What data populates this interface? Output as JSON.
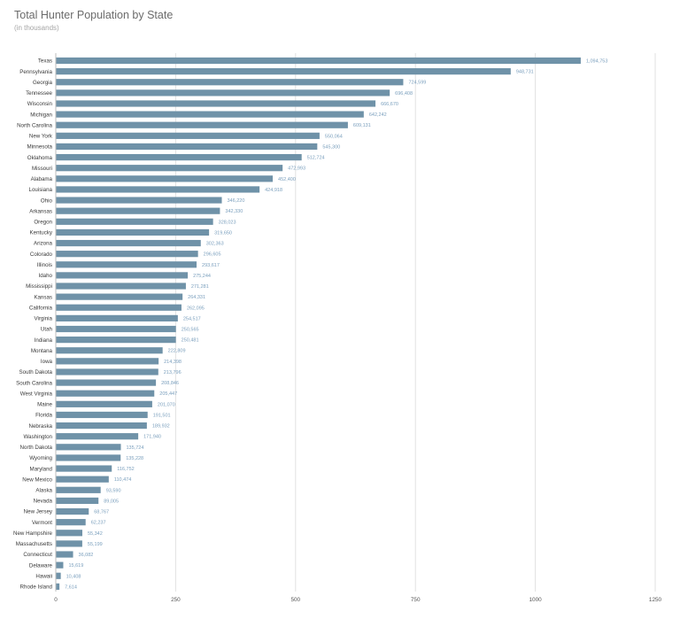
{
  "chart_data": {
    "type": "bar",
    "orientation": "horizontal",
    "title": "Total Hunter Population by State",
    "subtitle": "(in thousands)",
    "xlabel": "",
    "ylabel": "",
    "xlim": [
      0,
      1250
    ],
    "x_ticks": [
      "0",
      "250",
      "500",
      "750",
      "1000",
      "1250"
    ],
    "x_tick_values": [
      0,
      250,
      500,
      750,
      1000,
      1250
    ],
    "bar_color": "#6f92a8",
    "value_label_color": "#7a9fbd",
    "grid": "vertical",
    "categories": [
      "Texas",
      "Pennsylvania",
      "Georgia",
      "Tennessee",
      "Wisconsin",
      "Michigan",
      "North Carolina",
      "New York",
      "Minnesota",
      "Oklahoma",
      "Missouri",
      "Alabama",
      "Louisiana",
      "Ohio",
      "Arkansas",
      "Oregon",
      "Kentucky",
      "Arizona",
      "Colorado",
      "Illinois",
      "Idaho",
      "Mississippi",
      "Kansas",
      "California",
      "Virginia",
      "Utah",
      "Indiana",
      "Montana",
      "Iowa",
      "South Dakota",
      "South Carolina",
      "West Virginia",
      "Maine",
      "Florida",
      "Nebraska",
      "Washington",
      "North Dakota",
      "Wyoming",
      "Maryland",
      "New Mexico",
      "Alaska",
      "Nevada",
      "New Jersey",
      "Vermont",
      "New Hampshire",
      "Massachusetts",
      "Connecticut",
      "Delaware",
      "Hawaii",
      "Rhode Island"
    ],
    "values": [
      1094.753,
      948.731,
      724.599,
      696.408,
      666.67,
      642.242,
      609.131,
      550.064,
      545.3,
      512.724,
      472.993,
      452.4,
      424.918,
      346.22,
      342.33,
      328.023,
      319.65,
      302.363,
      296.605,
      293.617,
      275.244,
      271.281,
      264.331,
      262.095,
      254.517,
      250.565,
      250.481,
      222.809,
      214.398,
      213.796,
      208.846,
      205.447,
      201.07,
      191.501,
      189.932,
      171.94,
      135.724,
      135.228,
      116.752,
      110.474,
      93.59,
      89.005,
      68.767,
      62.237,
      55.342,
      55.199,
      36.082,
      15.619,
      10.408,
      7.614
    ],
    "value_labels": [
      "1,094,753",
      "948,731",
      "724,599",
      "696,408",
      "666,670",
      "642,242",
      "609,131",
      "550,064",
      "545,300",
      "512,724",
      "472,993",
      "452,400",
      "424,918",
      "346,220",
      "342,330",
      "328,023",
      "319,650",
      "302,363",
      "296,605",
      "293,617",
      "275,244",
      "271,281",
      "264,331",
      "262,095",
      "254,517",
      "250,565",
      "250,481",
      "222,809",
      "214,398",
      "213,796",
      "208,846",
      "205,447",
      "201,070",
      "191,501",
      "189,932",
      "171,940",
      "135,724",
      "135,228",
      "116,752",
      "110,474",
      "93,590",
      "89,005",
      "68,767",
      "62,237",
      "55,342",
      "55,199",
      "36,082",
      "15,619",
      "10,408",
      "7,614"
    ]
  }
}
